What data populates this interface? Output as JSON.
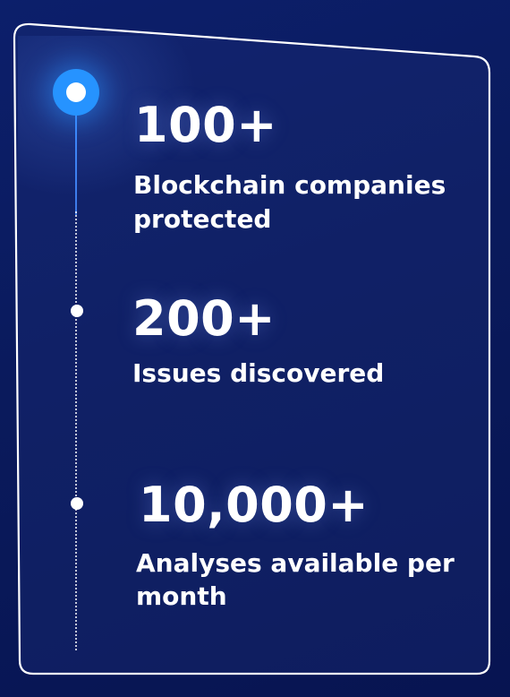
{
  "accent_color": "#2693ff",
  "background_color": "#0a1a5c",
  "stats": [
    {
      "value": "100+",
      "label_lines": [
        "Blockchain companies",
        "protected"
      ]
    },
    {
      "value": "200+",
      "label_lines": [
        "Issues discovered"
      ]
    },
    {
      "value": "10,000+",
      "label_lines": [
        "Analyses available per",
        "month"
      ]
    }
  ]
}
